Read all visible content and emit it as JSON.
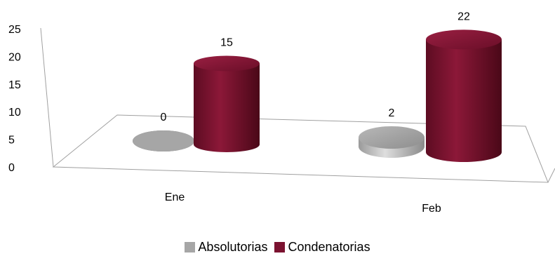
{
  "chart_data": {
    "type": "bar",
    "categories": [
      "Ene",
      "Feb"
    ],
    "series": [
      {
        "name": "Absolutorias",
        "values": [
          0,
          2
        ],
        "color": "#a6a6a6"
      },
      {
        "name": "Condenatorias",
        "values": [
          15,
          22
        ],
        "color": "#7b1230"
      }
    ],
    "yticks": [
      0,
      5,
      10,
      15,
      20,
      25
    ],
    "ylim": [
      0,
      25
    ],
    "legend_position": "bottom",
    "grid": false
  }
}
